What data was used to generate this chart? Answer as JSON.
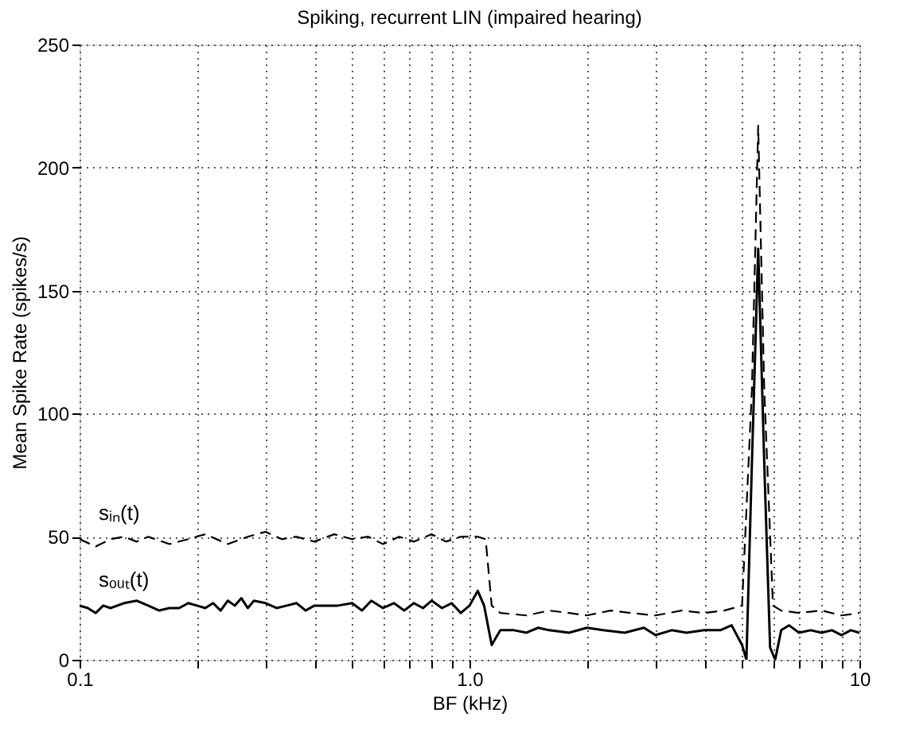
{
  "chart_data": {
    "type": "line",
    "title": "Spiking, recurrent LIN (impaired hearing)",
    "xlabel": "BF (kHz)",
    "ylabel": "Mean Spike Rate (spikes/s)",
    "log": "x",
    "xlim": [
      0.1,
      10
    ],
    "ylim": [
      0,
      250
    ],
    "xticks": [
      {
        "value": 0.1,
        "label": "0.1"
      },
      {
        "value": 0.2,
        "label": null
      },
      {
        "value": 0.3,
        "label": null
      },
      {
        "value": 0.4,
        "label": null
      },
      {
        "value": 0.5,
        "label": null
      },
      {
        "value": 0.6,
        "label": null
      },
      {
        "value": 0.7,
        "label": null
      },
      {
        "value": 0.8,
        "label": null
      },
      {
        "value": 0.9,
        "label": null
      },
      {
        "value": 1,
        "label": "1.0"
      },
      {
        "value": 2,
        "label": null
      },
      {
        "value": 3,
        "label": null
      },
      {
        "value": 4,
        "label": null
      },
      {
        "value": 5,
        "label": null
      },
      {
        "value": 6,
        "label": null
      },
      {
        "value": 7,
        "label": null
      },
      {
        "value": 8,
        "label": null
      },
      {
        "value": 9,
        "label": null
      },
      {
        "value": 10,
        "label": "10"
      }
    ],
    "yticks": [
      0,
      50,
      100,
      150,
      200,
      250
    ],
    "grid": true,
    "legend": false,
    "marker": "none",
    "series": [
      {
        "name": "sᵢₙ(t)",
        "color": "#000000",
        "line_style": "dashed",
        "x": [
          0.1,
          0.11,
          0.12,
          0.13,
          0.14,
          0.15,
          0.17,
          0.19,
          0.21,
          0.24,
          0.27,
          0.3,
          0.33,
          0.36,
          0.4,
          0.45,
          0.5,
          0.55,
          0.6,
          0.66,
          0.72,
          0.8,
          0.87,
          0.95,
          1.05,
          1.1,
          1.14,
          1.2,
          1.4,
          1.6,
          1.8,
          2.0,
          2.3,
          2.6,
          3.0,
          3.5,
          4.0,
          4.5,
          5.0,
          5.3,
          5.5,
          5.7,
          6.0,
          6.3,
          7.0,
          8.0,
          9.0,
          10
        ],
        "values": [
          49,
          46,
          49,
          50,
          48,
          50,
          47,
          49,
          51,
          47,
          50,
          52,
          49,
          50,
          48,
          51,
          49,
          50,
          47,
          50,
          48,
          51,
          48,
          50,
          50,
          49,
          22,
          19,
          18,
          20,
          19,
          18,
          20,
          19,
          18,
          20,
          19,
          20,
          22,
          110,
          217,
          110,
          22,
          20,
          19,
          20,
          18,
          19
        ]
      },
      {
        "name": "sₒᵤₜ(t)",
        "color": "#000000",
        "line_style": "solid",
        "x": [
          0.1,
          0.105,
          0.11,
          0.115,
          0.12,
          0.13,
          0.14,
          0.15,
          0.16,
          0.17,
          0.18,
          0.19,
          0.2,
          0.21,
          0.22,
          0.23,
          0.24,
          0.25,
          0.26,
          0.27,
          0.28,
          0.3,
          0.32,
          0.34,
          0.36,
          0.38,
          0.4,
          0.43,
          0.46,
          0.5,
          0.53,
          0.56,
          0.6,
          0.64,
          0.68,
          0.72,
          0.76,
          0.8,
          0.85,
          0.9,
          0.95,
          1.0,
          1.05,
          1.09,
          1.14,
          1.2,
          1.3,
          1.4,
          1.5,
          1.6,
          1.8,
          2.0,
          2.2,
          2.5,
          2.8,
          3.0,
          3.3,
          3.6,
          4.0,
          4.4,
          4.7,
          5.0,
          5.13,
          5.3,
          5.5,
          5.7,
          5.9,
          6.08,
          6.3,
          6.6,
          7.0,
          7.5,
          8.0,
          8.5,
          9.0,
          9.5,
          10
        ],
        "values": [
          22,
          21,
          19,
          22,
          21,
          23,
          24,
          22,
          20,
          21,
          21,
          23,
          22,
          21,
          23,
          20,
          24,
          22,
          25,
          21,
          24,
          23,
          21,
          22,
          23,
          20,
          22,
          22,
          22,
          23,
          20,
          24,
          21,
          23,
          20,
          23,
          21,
          24,
          21,
          23,
          19,
          22,
          28,
          22,
          6,
          12,
          12,
          11,
          13,
          12,
          11,
          13,
          12,
          11,
          13,
          10,
          12,
          11,
          12,
          12,
          14,
          6,
          0,
          80,
          167,
          80,
          5,
          0,
          12,
          14,
          11,
          12,
          11,
          12,
          10,
          12,
          11
        ]
      }
    ]
  }
}
